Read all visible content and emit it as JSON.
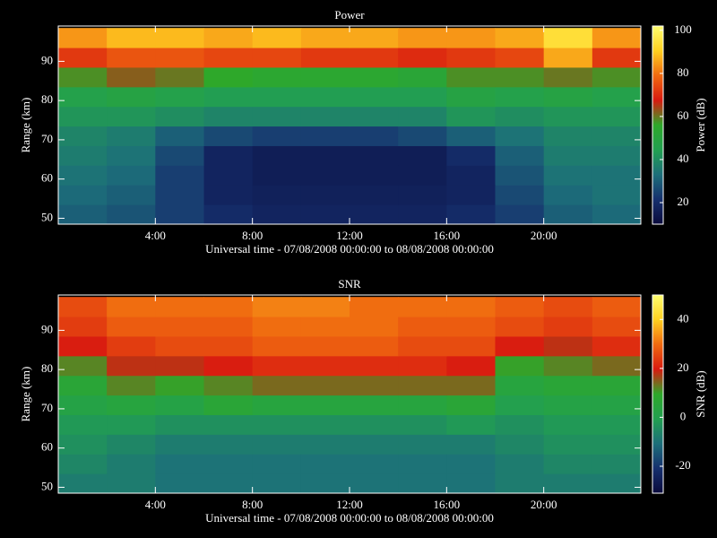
{
  "chart_data": [
    {
      "type": "heatmap",
      "title": "Power",
      "x_label": "Universal time - 07/08/2008 00:00:00 to 08/08/2008 00:00:00",
      "y_label": "Range (km)",
      "colorbar_label": "Power (dB)",
      "x": [
        1,
        3,
        5,
        7,
        9,
        11,
        13,
        15,
        17,
        19,
        21,
        23
      ],
      "y": [
        51,
        56,
        61,
        66,
        71,
        76,
        81,
        86,
        91,
        96
      ],
      "values": [
        [
          30,
          28,
          24,
          20,
          18,
          18,
          18,
          18,
          20,
          24,
          30,
          32
        ],
        [
          32,
          30,
          24,
          18,
          17,
          17,
          17,
          17,
          18,
          26,
          32,
          34
        ],
        [
          34,
          32,
          24,
          18,
          16,
          16,
          16,
          16,
          18,
          28,
          34,
          34
        ],
        [
          36,
          34,
          26,
          18,
          16,
          16,
          16,
          16,
          20,
          30,
          36,
          36
        ],
        [
          38,
          36,
          30,
          26,
          24,
          24,
          24,
          26,
          30,
          34,
          38,
          38
        ],
        [
          42,
          42,
          40,
          38,
          38,
          38,
          38,
          38,
          42,
          40,
          42,
          42
        ],
        [
          46,
          48,
          46,
          44,
          44,
          44,
          44,
          44,
          48,
          46,
          48,
          46
        ],
        [
          58,
          62,
          60,
          56,
          54,
          54,
          54,
          52,
          58,
          58,
          60,
          58
        ],
        [
          72,
          76,
          76,
          74,
          74,
          72,
          72,
          70,
          72,
          74,
          86,
          72
        ],
        [
          84,
          88,
          88,
          86,
          88,
          86,
          86,
          84,
          84,
          86,
          94,
          84
        ]
      ],
      "xlim": [
        0,
        24
      ],
      "xticks": [
        {
          "value": 4,
          "label": "4:00"
        },
        {
          "value": 8,
          "label": "8:00"
        },
        {
          "value": 12,
          "label": "12:00"
        },
        {
          "value": 16,
          "label": "16:00"
        },
        {
          "value": 20,
          "label": "20:00"
        }
      ],
      "ylim": [
        48.5,
        99
      ],
      "yticks": [
        50,
        60,
        70,
        80,
        90
      ],
      "clim": [
        10,
        102
      ],
      "cticks": [
        20,
        40,
        60,
        80,
        100
      ],
      "colormap": [
        "#0a0a3c",
        "#16306e",
        "#1d6f7a",
        "#22a050",
        "#2ea82a",
        "#d81a10",
        "#f06a10",
        "#ffd020",
        "#ffff70"
      ]
    },
    {
      "type": "heatmap",
      "title": "SNR",
      "x_label": "Universal time - 07/08/2008 00:00:00 to 08/08/2008 00:00:00",
      "y_label": "Range (km)",
      "colorbar_label": "SNR (dB)",
      "x": [
        1,
        3,
        5,
        7,
        9,
        11,
        13,
        15,
        17,
        19,
        21,
        23
      ],
      "y": [
        51,
        56,
        61,
        66,
        71,
        76,
        81,
        86,
        91,
        96
      ],
      "values": [
        [
          -8,
          -8,
          -10,
          -10,
          -10,
          -10,
          -10,
          -10,
          -10,
          -8,
          -8,
          -8
        ],
        [
          -6,
          -8,
          -10,
          -10,
          -10,
          -10,
          -10,
          -10,
          -10,
          -8,
          -6,
          -6
        ],
        [
          -4,
          -6,
          -8,
          -8,
          -8,
          -8,
          -8,
          -8,
          -8,
          -6,
          -4,
          -4
        ],
        [
          -2,
          -2,
          -4,
          -4,
          -4,
          -4,
          -4,
          -4,
          -2,
          -4,
          -2,
          -2
        ],
        [
          2,
          4,
          2,
          6,
          4,
          4,
          4,
          4,
          6,
          0,
          2,
          2
        ],
        [
          6,
          12,
          10,
          12,
          14,
          14,
          14,
          14,
          14,
          4,
          6,
          6
        ],
        [
          12,
          18,
          18,
          20,
          22,
          22,
          22,
          22,
          20,
          10,
          12,
          14
        ],
        [
          20,
          24,
          26,
          26,
          28,
          28,
          28,
          26,
          26,
          20,
          18,
          22
        ],
        [
          24,
          28,
          28,
          28,
          30,
          30,
          30,
          28,
          28,
          26,
          24,
          26
        ],
        [
          26,
          30,
          30,
          30,
          32,
          32,
          30,
          30,
          30,
          28,
          26,
          28
        ]
      ],
      "xlim": [
        0,
        24
      ],
      "xticks": [
        {
          "value": 4,
          "label": "4:00"
        },
        {
          "value": 8,
          "label": "8:00"
        },
        {
          "value": 12,
          "label": "12:00"
        },
        {
          "value": 16,
          "label": "16:00"
        },
        {
          "value": 20,
          "label": "20:00"
        }
      ],
      "ylim": [
        48.5,
        99
      ],
      "yticks": [
        50,
        60,
        70,
        80,
        90
      ],
      "clim": [
        -31,
        50
      ],
      "cticks": [
        -20,
        0,
        20,
        40
      ],
      "colormap": [
        "#0a0a3c",
        "#16306e",
        "#1d6f7a",
        "#22a050",
        "#2ea82a",
        "#d81a10",
        "#f06a10",
        "#ffd020",
        "#ffff70"
      ]
    }
  ]
}
